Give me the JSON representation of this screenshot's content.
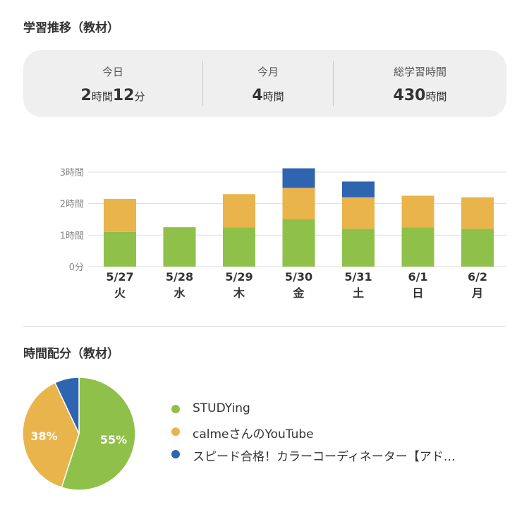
{
  "colors": {
    "STUDYing": "#8fc04a",
    "calme": "#e9b44c",
    "speed": "#2e64b0"
  },
  "section1": {
    "title": "学習推移（教材）"
  },
  "summary": {
    "today": {
      "label": "今日",
      "v1": "2",
      "u1": "時間",
      "v2": "12",
      "u2": "分"
    },
    "month": {
      "label": "今月",
      "v1": "4",
      "u1": "時間"
    },
    "total": {
      "label": "総学習時間",
      "v1": "430",
      "u1": "時間"
    }
  },
  "section2": {
    "title": "時間配分（教材）"
  },
  "chart_data": [
    {
      "type": "bar",
      "stacked": true,
      "categories": [
        "5/27",
        "5/28",
        "5/29",
        "5/30",
        "5/31",
        "6/1",
        "6/2"
      ],
      "category_days": [
        "火",
        "水",
        "木",
        "金",
        "土",
        "日",
        "月"
      ],
      "y_ticks": [
        "0分",
        "1時間",
        "2時間",
        "3時間"
      ],
      "ylim": [
        0,
        3
      ],
      "grid": true,
      "series": [
        {
          "name": "STUDYing",
          "color": "#8fc04a",
          "values": [
            1.1,
            1.25,
            1.25,
            1.5,
            1.2,
            1.25,
            1.2
          ]
        },
        {
          "name": "calmeさんのYouTube",
          "color": "#e9b44c",
          "values": [
            1.05,
            0,
            1.05,
            1.0,
            1.0,
            1.0,
            1.0
          ]
        },
        {
          "name": "スピード合格！カラーコーディネーター【アド…",
          "color": "#2e64b0",
          "values": [
            0,
            0,
            0,
            0.62,
            0.5,
            0,
            0
          ]
        }
      ]
    },
    {
      "type": "pie",
      "slices": [
        {
          "name": "STUDYing",
          "value": 55,
          "label": "55%",
          "color": "#8fc04a"
        },
        {
          "name": "calmeさんのYouTube",
          "value": 38,
          "label": "38%",
          "color": "#e9b44c"
        },
        {
          "name": "スピード合格！カラーコーディネーター【アド…",
          "value": 7,
          "label": "",
          "color": "#2e64b0"
        }
      ],
      "legend": "right"
    }
  ]
}
